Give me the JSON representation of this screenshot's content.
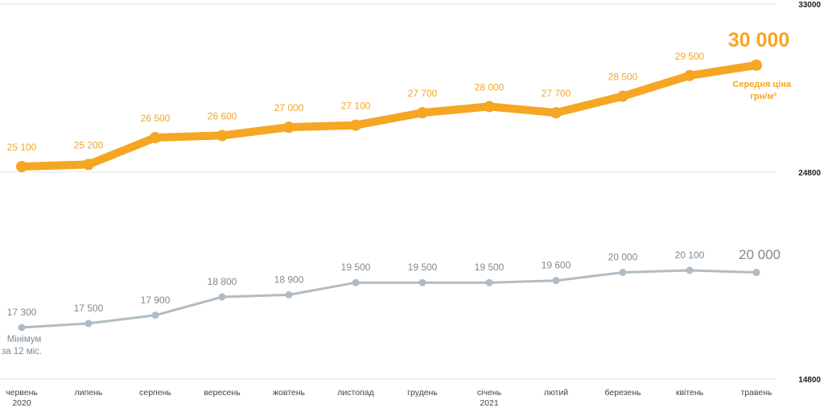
{
  "chart_data": {
    "type": "line",
    "categories": [
      [
        "червень",
        "2020"
      ],
      [
        "липень"
      ],
      [
        "серпень"
      ],
      [
        "вересень"
      ],
      [
        "жовтень"
      ],
      [
        "листопад"
      ],
      [
        "грудень"
      ],
      [
        "січень",
        "2021"
      ],
      [
        "лютий"
      ],
      [
        "березень"
      ],
      [
        "квітень"
      ],
      [
        "травень"
      ]
    ],
    "y_ticks": [
      "33000",
      "24800",
      "14800"
    ],
    "ylim": [
      14800,
      33000
    ],
    "grid": "horizontal",
    "series": [
      {
        "key": "avg",
        "color": "#f5a623",
        "values": [
          25100,
          25200,
          26500,
          26600,
          27000,
          27100,
          27700,
          28000,
          27700,
          28500,
          29500,
          30000
        ],
        "labels": [
          "25 100",
          "25 200",
          "26 500",
          "26 600",
          "27 000",
          "27 100",
          "27 700",
          "28 000",
          "27 700",
          "28 500",
          "29 500",
          "30 000"
        ],
        "note": [
          "Середня ціна",
          "грн/м²"
        ]
      },
      {
        "key": "min",
        "color": "#b0bcc4",
        "values": [
          17300,
          17500,
          17900,
          18800,
          18900,
          19500,
          19500,
          19500,
          19600,
          20000,
          20100,
          20000
        ],
        "labels": [
          "17 300",
          "17 500",
          "17 900",
          "18 800",
          "18 900",
          "19 500",
          "19 500",
          "19 500",
          "19 600",
          "20 000",
          "20 100",
          "20 000"
        ],
        "note": [
          "Мінімум",
          "за 12 міс."
        ]
      }
    ]
  }
}
